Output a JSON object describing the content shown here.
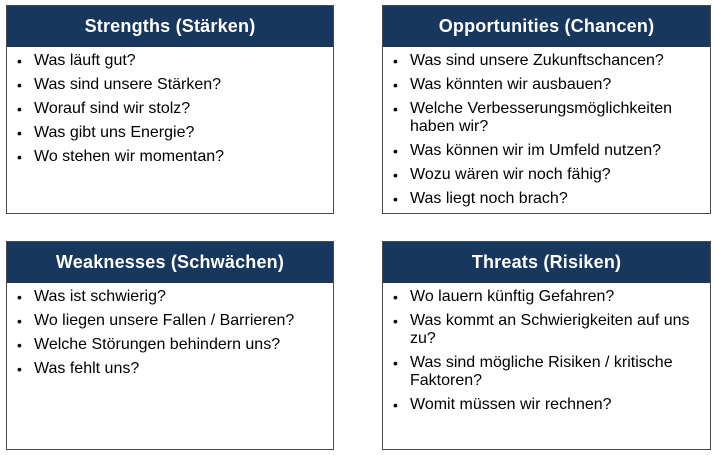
{
  "cards": {
    "strengths": {
      "title": "Strengths (Stärken)",
      "items": [
        "Was läuft gut?",
        "Was sind unsere Stärken?",
        "Worauf sind wir stolz?",
        "Was gibt uns Energie?",
        "Wo stehen wir momentan?"
      ]
    },
    "opportunities": {
      "title": "Opportunities (Chancen)",
      "items": [
        "Was sind unsere Zukunftschancen?",
        "Was könnten wir ausbauen?",
        "Welche Verbesserungsmöglichkeiten haben wir?",
        "Was können wir im Umfeld nutzen?",
        "Wozu wären wir noch fähig?",
        "Was liegt noch brach?"
      ]
    },
    "weaknesses": {
      "title": "Weaknesses (Schwächen)",
      "items": [
        "Was ist schwierig?",
        "Wo liegen unsere Fallen / Barrieren?",
        "Welche Störungen behindern uns?",
        "Was fehlt uns?"
      ]
    },
    "threats": {
      "title": "Threats (Risiken)",
      "items": [
        "Wo lauern künftig Gefahren?",
        "Was kommt an Schwierigkeiten auf uns zu?",
        "Was sind mögliche Risiken / kritische Faktoren?",
        "Womit müssen wir rechnen?"
      ]
    }
  },
  "bullet_symbol": "•",
  "colors": {
    "header_background": "#17375e",
    "header_text": "#ffffff",
    "border": "#4a4a4a"
  }
}
